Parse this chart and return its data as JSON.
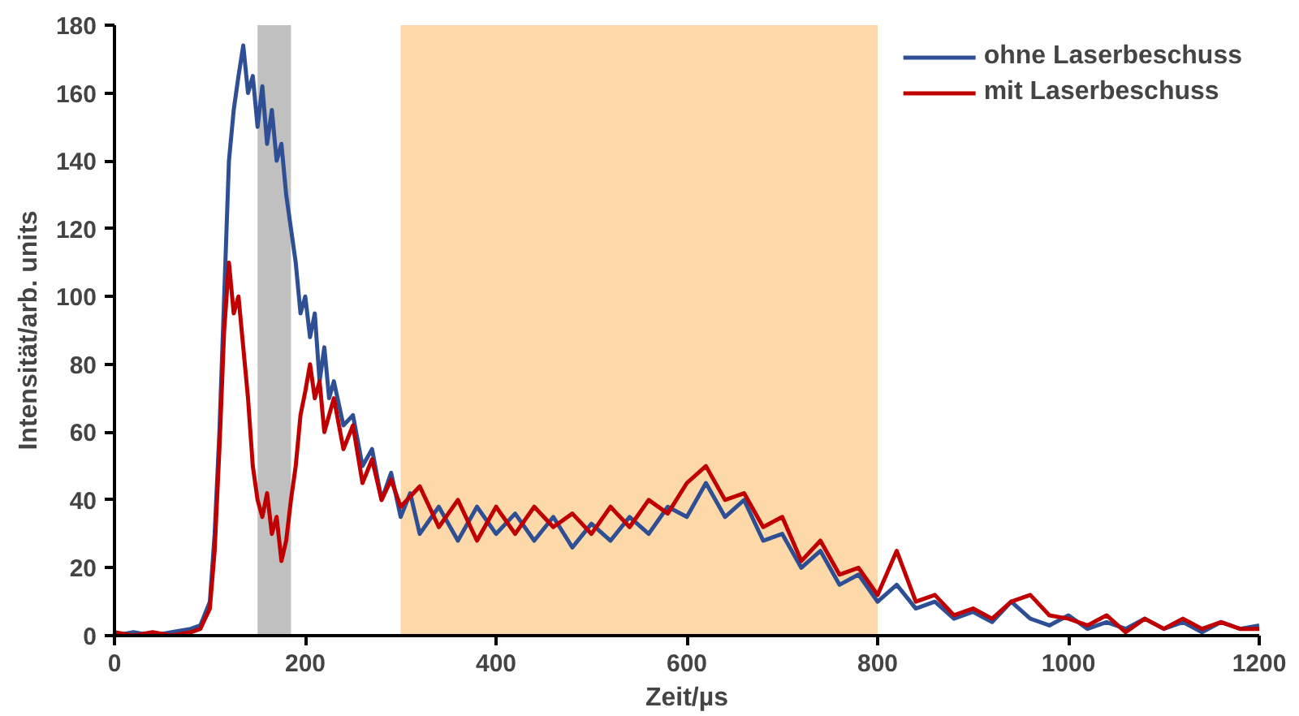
{
  "chart_data": {
    "type": "line",
    "xlabel": "Zeit/µs",
    "ylabel": "Intensität/arb. units",
    "xlim": [
      0,
      1200
    ],
    "ylim": [
      0,
      180
    ],
    "xticks": [
      0,
      200,
      400,
      600,
      800,
      1000,
      1200
    ],
    "yticks": [
      0,
      20,
      40,
      60,
      80,
      100,
      120,
      140,
      160,
      180
    ],
    "grid": false,
    "legend": "top right",
    "line_style": "solid",
    "marker": "none",
    "bands": [
      {
        "axis": "x",
        "from": 150,
        "to": 185,
        "color": "#c0c0c0"
      },
      {
        "axis": "x",
        "from": 300,
        "to": 800,
        "color": "#fdd8a8"
      }
    ],
    "series": [
      {
        "name": "ohne Laserbeschuss",
        "color": "#2f4f95",
        "x": [
          0,
          20,
          40,
          60,
          80,
          90,
          100,
          105,
          110,
          115,
          120,
          125,
          130,
          135,
          140,
          145,
          150,
          155,
          160,
          165,
          170,
          175,
          180,
          185,
          190,
          195,
          200,
          205,
          210,
          215,
          220,
          225,
          230,
          240,
          250,
          260,
          270,
          280,
          290,
          300,
          310,
          320,
          340,
          360,
          380,
          400,
          420,
          440,
          460,
          480,
          500,
          520,
          540,
          560,
          580,
          600,
          620,
          640,
          660,
          680,
          700,
          720,
          740,
          760,
          780,
          800,
          820,
          840,
          860,
          880,
          900,
          920,
          940,
          960,
          980,
          1000,
          1020,
          1040,
          1060,
          1080,
          1100,
          1120,
          1140,
          1160,
          1180,
          1200
        ],
        "values": [
          0,
          1,
          0,
          1,
          2,
          3,
          10,
          30,
          60,
          100,
          140,
          155,
          165,
          174,
          160,
          165,
          150,
          162,
          145,
          155,
          140,
          145,
          130,
          120,
          110,
          95,
          100,
          88,
          95,
          75,
          85,
          70,
          75,
          62,
          65,
          50,
          55,
          40,
          48,
          35,
          42,
          30,
          38,
          28,
          38,
          30,
          36,
          28,
          35,
          26,
          33,
          28,
          35,
          30,
          38,
          35,
          45,
          35,
          40,
          28,
          30,
          20,
          25,
          15,
          18,
          10,
          15,
          8,
          10,
          5,
          7,
          4,
          10,
          5,
          3,
          6,
          2,
          4,
          2,
          5,
          2,
          4,
          1,
          4,
          2,
          3
        ]
      },
      {
        "name": "mit Laserbeschuss",
        "color": "#c00000",
        "x": [
          0,
          20,
          40,
          60,
          80,
          90,
          100,
          105,
          110,
          115,
          120,
          125,
          130,
          135,
          140,
          145,
          150,
          155,
          160,
          165,
          170,
          175,
          180,
          185,
          190,
          195,
          200,
          205,
          210,
          215,
          220,
          230,
          240,
          250,
          260,
          270,
          280,
          290,
          300,
          320,
          340,
          360,
          380,
          400,
          420,
          440,
          460,
          480,
          500,
          520,
          540,
          560,
          580,
          600,
          620,
          640,
          660,
          680,
          700,
          720,
          740,
          760,
          780,
          800,
          820,
          840,
          860,
          880,
          900,
          920,
          940,
          960,
          980,
          1000,
          1020,
          1040,
          1060,
          1080,
          1100,
          1120,
          1140,
          1160,
          1180,
          1200
        ],
        "values": [
          1,
          0,
          1,
          0,
          1,
          2,
          8,
          25,
          55,
          90,
          110,
          95,
          100,
          85,
          70,
          50,
          40,
          35,
          42,
          30,
          35,
          22,
          28,
          40,
          50,
          65,
          72,
          80,
          70,
          75,
          60,
          70,
          55,
          62,
          45,
          52,
          40,
          46,
          38,
          44,
          32,
          40,
          28,
          38,
          30,
          38,
          32,
          36,
          30,
          38,
          32,
          40,
          36,
          45,
          50,
          40,
          42,
          32,
          35,
          22,
          28,
          18,
          20,
          12,
          25,
          10,
          12,
          6,
          8,
          5,
          10,
          12,
          6,
          5,
          3,
          6,
          1,
          5,
          2,
          5,
          2,
          4,
          2,
          2
        ]
      }
    ]
  }
}
